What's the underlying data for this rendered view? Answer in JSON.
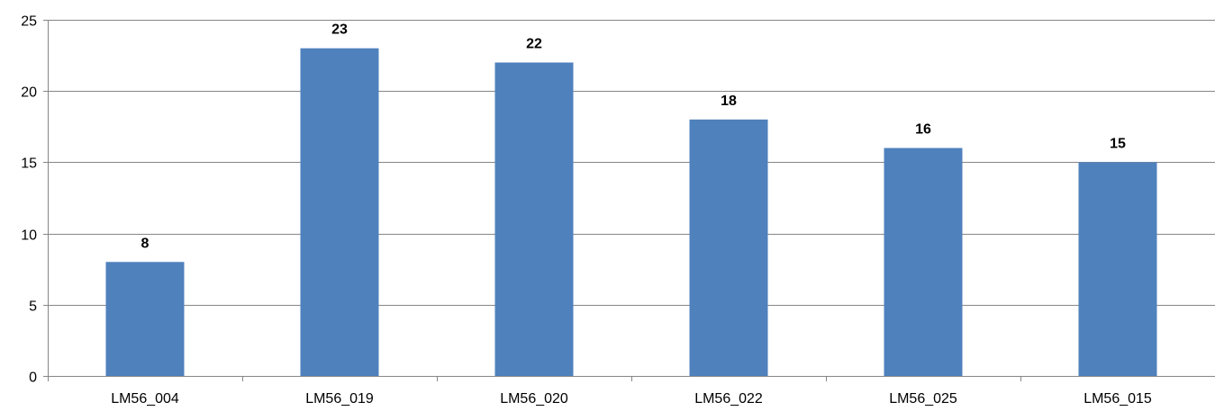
{
  "chart_data": {
    "type": "bar",
    "categories": [
      "LM56_004",
      "LM56_019",
      "LM56_020",
      "LM56_022",
      "LM56_025",
      "LM56_015"
    ],
    "values": [
      8,
      23,
      22,
      18,
      16,
      15
    ],
    "title": "",
    "xlabel": "",
    "ylabel": "",
    "ylim": [
      0,
      25
    ],
    "yticks": [
      0,
      5,
      10,
      15,
      20,
      25
    ],
    "grid": "horizontal",
    "legend": "none",
    "data_labels": true,
    "colors": {
      "bar": "#4f81bd",
      "grid": "#868686",
      "axis": "#868686",
      "text": "#000000"
    }
  }
}
